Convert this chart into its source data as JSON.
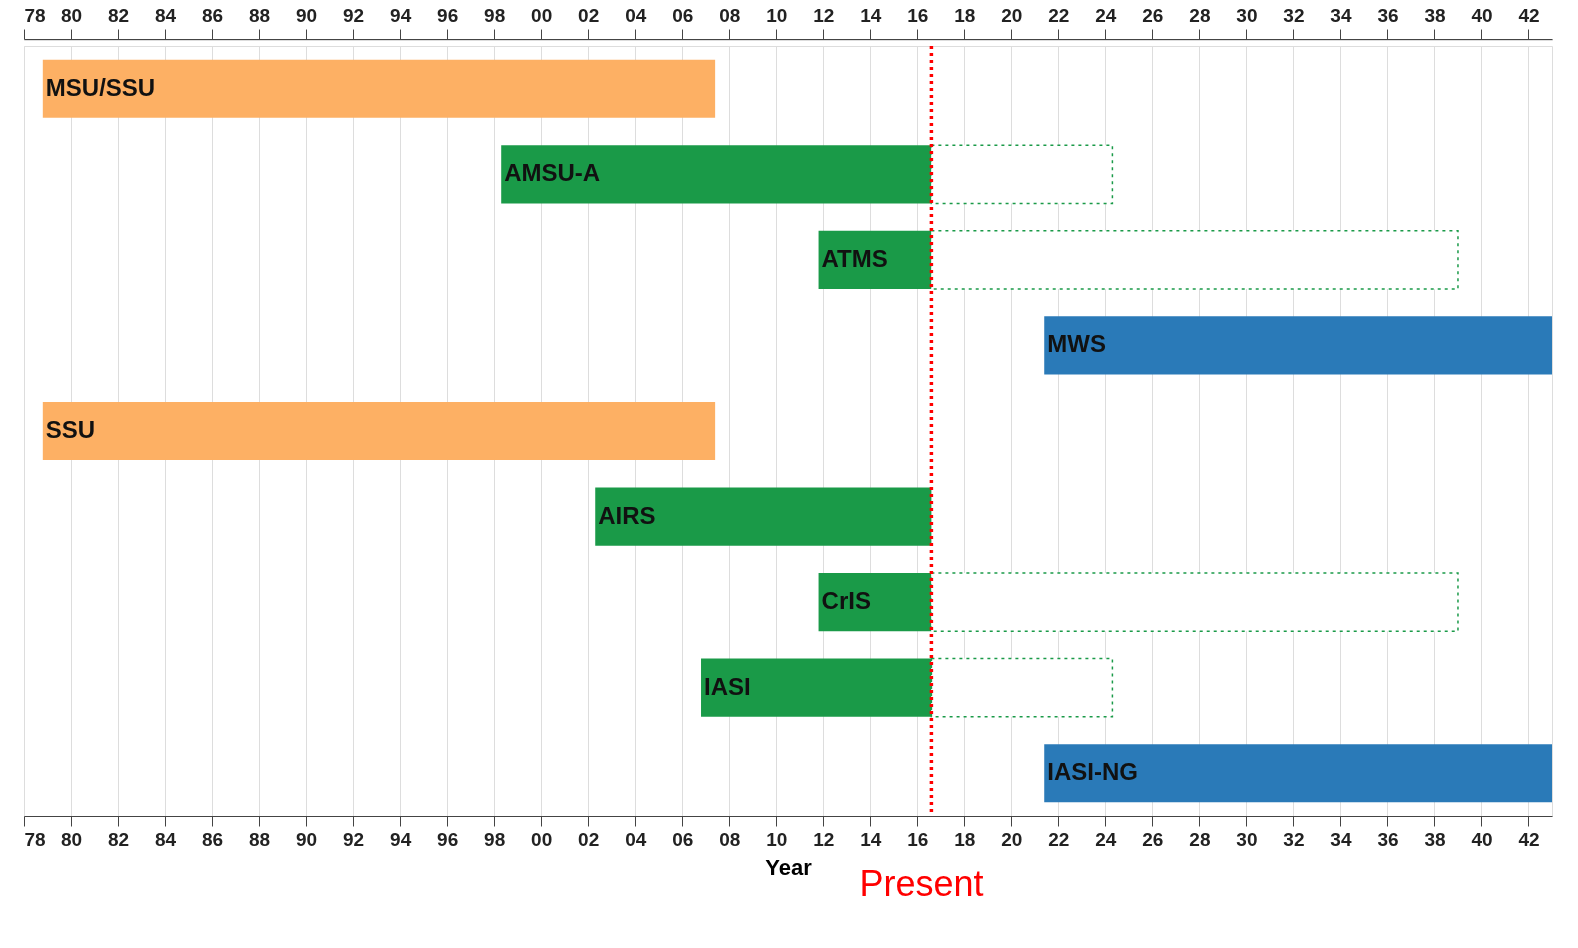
{
  "chart_data": {
    "type": "bar",
    "orientation": "horizontal",
    "xlabel": "Year",
    "categories": [
      "MSU/SSU",
      "AMSU-A",
      "ATMS",
      "MWS",
      "SSU",
      "AIRS",
      "CrIS",
      "IASI",
      "IASI-NG"
    ],
    "series": [
      {
        "colors": [
          "#fdb064",
          "#1a9a48",
          "#1a9a48",
          "#2a7ab8",
          "#fdb064",
          "#1a9a48",
          "#1a9a48",
          "#1a9a48",
          "#2a7ab8"
        ],
        "base": [
          1978.8,
          1998.3,
          2011.8,
          2021.4,
          1978.8,
          2002.3,
          2011.8,
          2006.8,
          2021.4
        ],
        "values": [
          28.6,
          18.3,
          4.8,
          21.6,
          28.6,
          14.3,
          4.8,
          9.8,
          21.6
        ]
      },
      {
        "color": "#1a9a48",
        "line_style": "dotted",
        "base": [
          null,
          2016.6,
          2016.6,
          null,
          null,
          null,
          2016.6,
          2016.6,
          null
        ],
        "values": [
          null,
          7.7,
          22.4,
          null,
          null,
          null,
          22.4,
          7.7,
          null
        ]
      }
    ],
    "xlim": [
      1978,
      2043
    ],
    "xticks": [
      {
        "value": 1978,
        "label": "78"
      },
      {
        "value": 1980,
        "label": "80"
      },
      {
        "value": 1982,
        "label": "82"
      },
      {
        "value": 1984,
        "label": "84"
      },
      {
        "value": 1986,
        "label": "86"
      },
      {
        "value": 1988,
        "label": "88"
      },
      {
        "value": 1990,
        "label": "90"
      },
      {
        "value": 1992,
        "label": "92"
      },
      {
        "value": 1994,
        "label": "94"
      },
      {
        "value": 1996,
        "label": "96"
      },
      {
        "value": 1998,
        "label": "98"
      },
      {
        "value": 2000,
        "label": "00"
      },
      {
        "value": 2002,
        "label": "02"
      },
      {
        "value": 2004,
        "label": "04"
      },
      {
        "value": 2006,
        "label": "06"
      },
      {
        "value": 2008,
        "label": "08"
      },
      {
        "value": 2010,
        "label": "10"
      },
      {
        "value": 2012,
        "label": "12"
      },
      {
        "value": 2014,
        "label": "14"
      },
      {
        "value": 2016,
        "label": "16"
      },
      {
        "value": 2018,
        "label": "18"
      },
      {
        "value": 2020,
        "label": "20"
      },
      {
        "value": 2022,
        "label": "22"
      },
      {
        "value": 2024,
        "label": "24"
      },
      {
        "value": 2026,
        "label": "26"
      },
      {
        "value": 2028,
        "label": "28"
      },
      {
        "value": 2030,
        "label": "30"
      },
      {
        "value": 2032,
        "label": "32"
      },
      {
        "value": 2034,
        "label": "34"
      },
      {
        "value": 2036,
        "label": "36"
      },
      {
        "value": 2038,
        "label": "38"
      },
      {
        "value": 2040,
        "label": "40"
      },
      {
        "value": 2042,
        "label": "42"
      }
    ],
    "x2lim": [
      1978,
      2043
    ],
    "x2ticks": [
      {
        "value": 1978,
        "label": "78"
      },
      {
        "value": 1980,
        "label": "80"
      },
      {
        "value": 1982,
        "label": "82"
      },
      {
        "value": 1984,
        "label": "84"
      },
      {
        "value": 1986,
        "label": "86"
      },
      {
        "value": 1988,
        "label": "88"
      },
      {
        "value": 1990,
        "label": "90"
      },
      {
        "value": 1992,
        "label": "92"
      },
      {
        "value": 1994,
        "label": "94"
      },
      {
        "value": 1996,
        "label": "96"
      },
      {
        "value": 1998,
        "label": "98"
      },
      {
        "value": 2000,
        "label": "00"
      },
      {
        "value": 2002,
        "label": "02"
      },
      {
        "value": 2004,
        "label": "04"
      },
      {
        "value": 2006,
        "label": "06"
      },
      {
        "value": 2008,
        "label": "08"
      },
      {
        "value": 2010,
        "label": "10"
      },
      {
        "value": 2012,
        "label": "12"
      },
      {
        "value": 2014,
        "label": "14"
      },
      {
        "value": 2016,
        "label": "16"
      },
      {
        "value": 2018,
        "label": "18"
      },
      {
        "value": 2020,
        "label": "20"
      },
      {
        "value": 2022,
        "label": "22"
      },
      {
        "value": 2024,
        "label": "24"
      },
      {
        "value": 2026,
        "label": "26"
      },
      {
        "value": 2028,
        "label": "28"
      },
      {
        "value": 2030,
        "label": "30"
      },
      {
        "value": 2032,
        "label": "32"
      },
      {
        "value": 2034,
        "label": "34"
      },
      {
        "value": 2036,
        "label": "36"
      },
      {
        "value": 2038,
        "label": "38"
      },
      {
        "value": 2040,
        "label": "40"
      },
      {
        "value": 2042,
        "label": "42"
      }
    ],
    "grid": "x",
    "tick_labels": "x",
    "ref_lines": [
      {
        "axis": "x",
        "value": 2016.6,
        "label": "Present",
        "color": "#ff0000",
        "line_style": "dotted"
      }
    ]
  }
}
